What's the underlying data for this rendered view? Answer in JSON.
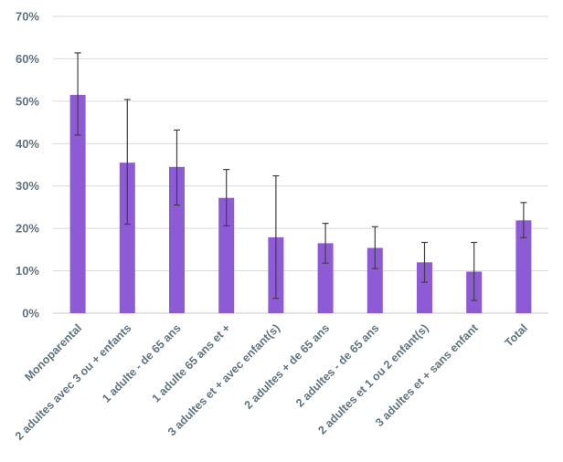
{
  "chart_data": {
    "type": "bar",
    "title": "",
    "xlabel": "",
    "ylabel": "",
    "ylim": [
      0,
      70
    ],
    "y_ticks": [
      "0%",
      "10%",
      "20%",
      "30%",
      "40%",
      "50%",
      "60%",
      "70%"
    ],
    "y_tick_values": [
      0,
      10,
      20,
      30,
      40,
      50,
      60,
      70
    ],
    "grid": true,
    "legend": "none",
    "bar_color": "#8e5bd6",
    "categories": [
      "Monoparental",
      "2 adultes avec 3 ou + enfants",
      "1 adulte - de 65 ans",
      "1 adulte 65 ans et +",
      "3 adultes et + avec enfant(s)",
      "2 adultes + de 65 ans",
      "2 adultes - de 65 ans",
      "2 adultes et 1 ou 2 enfant(s)",
      "3 adultes et + sans enfant",
      "Total"
    ],
    "values": [
      51.5,
      35.5,
      34.5,
      27.2,
      17.9,
      16.5,
      15.4,
      12.0,
      9.8,
      21.9
    ],
    "error_low": [
      42.0,
      21.0,
      25.5,
      20.6,
      3.5,
      11.8,
      10.5,
      7.3,
      3.0,
      17.8
    ],
    "error_high": [
      61.4,
      50.4,
      43.2,
      33.9,
      32.4,
      21.2,
      20.4,
      16.7,
      16.7,
      26.1
    ]
  }
}
